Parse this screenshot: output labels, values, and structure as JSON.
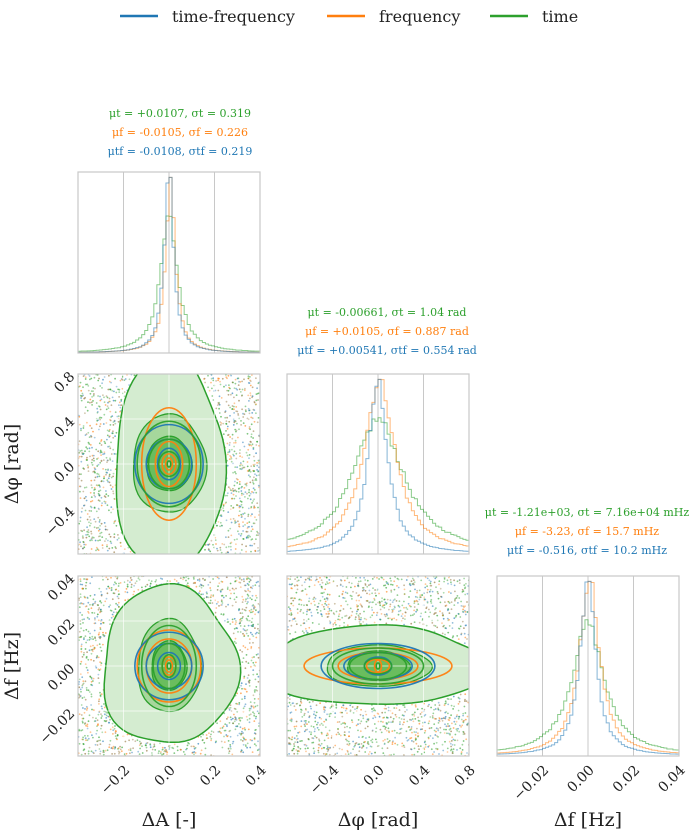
{
  "colors": {
    "time_frequency": "#1f77b4",
    "frequency": "#ff7f0e",
    "time": "#2ca02c",
    "grid": "#c8c8c8",
    "spine": "#c8c8c8",
    "fill_light": "#d4ecd0",
    "fill_mid": "#a6d79c",
    "fill_dark": "#6abd5e"
  },
  "legend": [
    {
      "label": "time-frequency",
      "color": "#1f77b4"
    },
    {
      "label": "frequency",
      "color": "#ff7f0e"
    },
    {
      "label": "time",
      "color": "#2ca02c"
    }
  ],
  "chart_data": {
    "type": "corner",
    "series": [
      "time-frequency",
      "frequency",
      "time"
    ],
    "parameters": [
      {
        "name": "dA",
        "label": "ΔA [-]",
        "range": [
          -0.4,
          0.4
        ],
        "ticks": [
          -0.2,
          0.0,
          0.2,
          0.4
        ],
        "tick_labels": [
          "−0.2",
          "0.0",
          "0.2",
          "0.4"
        ],
        "grid": [
          -0.2,
          0.0,
          0.2
        ]
      },
      {
        "name": "dphi",
        "label": "Δφ [rad]",
        "range": [
          -0.8,
          0.8
        ],
        "ticks": [
          -0.4,
          0.0,
          0.4,
          0.8
        ],
        "tick_labels": [
          "−0.4",
          "0.0",
          "0.4",
          "0.8"
        ],
        "grid": [
          -0.4,
          0.0,
          0.4
        ]
      },
      {
        "name": "df",
        "label": "Δf [Hz]",
        "range": [
          -0.04,
          0.04
        ],
        "ticks": [
          -0.02,
          0.0,
          0.02,
          0.04
        ],
        "tick_labels": [
          "−0.02",
          "0.00",
          "0.02",
          "0.04"
        ],
        "grid": [
          -0.02,
          0.0,
          0.02
        ]
      }
    ],
    "stats": [
      {
        "parameter": "dA",
        "lines": [
          {
            "series": "time",
            "text": "μt = +0.0107, σt = 0.319"
          },
          {
            "series": "frequency",
            "text": "μf = -0.0105, σf = 0.226"
          },
          {
            "series": "time-frequency",
            "text": "μtf = -0.0108, σtf = 0.219"
          }
        ]
      },
      {
        "parameter": "dphi",
        "lines": [
          {
            "series": "time",
            "text": "μt = -0.00661, σt = 1.04 rad"
          },
          {
            "series": "frequency",
            "text": "μf = +0.0105, σf = 0.887 rad"
          },
          {
            "series": "time-frequency",
            "text": "μtf = +0.00541, σtf = 0.554 rad"
          }
        ]
      },
      {
        "parameter": "df",
        "lines": [
          {
            "series": "time",
            "text": "μt = -1.21e+03, σt = 7.16e+04 mHz"
          },
          {
            "series": "frequency",
            "text": "μf = -3.23, σf = 15.7 mHz"
          },
          {
            "series": "time-frequency",
            "text": "μtf = -0.516, σtf = 10.2 mHz"
          }
        ]
      }
    ],
    "marginal_widths": {
      "dA": {
        "time": 0.045,
        "frequency": 0.025,
        "time-frequency": 0.024
      },
      "dphi": {
        "time": 0.27,
        "frequency": 0.17,
        "time-frequency": 0.1
      },
      "df": {
        "time": 0.0085,
        "frequency": 0.0052,
        "time-frequency": 0.004
      }
    },
    "contours": {
      "dphi_vs_dA": {
        "time": [
          [
            0.045,
            0.11
          ],
          [
            0.09,
            0.22
          ],
          [
            0.14,
            0.38
          ]
        ],
        "frequency": [
          [
            0.03,
            0.09
          ],
          [
            0.06,
            0.2
          ],
          [
            0.12,
            0.5
          ]
        ],
        "time-frequency": [
          [
            0.05,
            0.14
          ],
          [
            0.1,
            0.22
          ],
          [
            0.15,
            0.35
          ]
        ]
      },
      "df_vs_dA": {
        "time": [
          [
            0.03,
            0.005
          ],
          [
            0.07,
            0.01
          ],
          [
            0.12,
            0.018
          ]
        ],
        "frequency": [
          [
            0.03,
            0.004
          ],
          [
            0.1,
            0.012
          ],
          [
            0.14,
            0.016
          ]
        ],
        "time-frequency": [
          [
            0.05,
            0.006
          ],
          [
            0.1,
            0.01
          ],
          [
            0.15,
            0.015
          ]
        ]
      },
      "df_vs_dphi": {
        "time": [
          [
            0.12,
            0.0035
          ],
          [
            0.25,
            0.006
          ],
          [
            0.4,
            0.008
          ]
        ],
        "frequency": [
          [
            0.1,
            0.003
          ],
          [
            0.35,
            0.006
          ],
          [
            0.65,
            0.008
          ]
        ],
        "time-frequency": [
          [
            0.12,
            0.004
          ],
          [
            0.3,
            0.006
          ],
          [
            0.5,
            0.01
          ]
        ]
      }
    },
    "grid": true,
    "legend_position": "top"
  }
}
